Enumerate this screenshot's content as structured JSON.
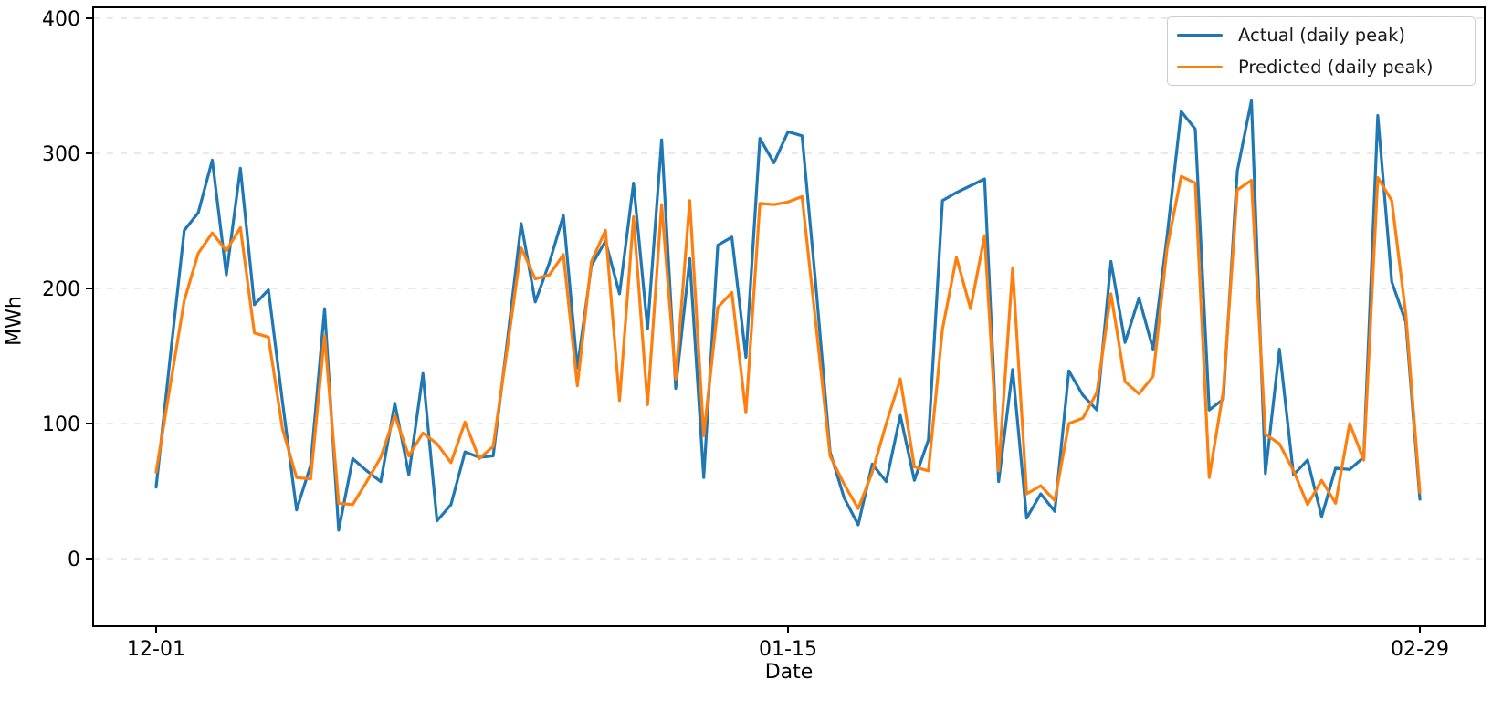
{
  "figure": {
    "background": "#ffffff",
    "spine_color": "#000000",
    "grid_color": "#dcdcdc",
    "text_color": "#1a1a1a"
  },
  "chart_data": {
    "type": "line",
    "title": "",
    "xlabel": "Date",
    "ylabel": "MWh",
    "grid": "horizontal dashed",
    "legend_position": "upper right",
    "y_ticks": [
      0,
      100,
      200,
      300,
      400
    ],
    "ylim": [
      -50,
      408
    ],
    "x_ticks": [
      {
        "day": 0,
        "label": "12-01"
      },
      {
        "day": 45,
        "label": "01-15"
      },
      {
        "day": 90,
        "label": "02-29"
      }
    ],
    "x_unit": "day index from 12-01 (daily data, 91 days: 12-01 to 02-29)",
    "series": [
      {
        "name": "Actual (daily peak)",
        "color": "#1f77b4",
        "values": [
          53,
          149,
          243,
          256,
          295,
          210,
          289,
          188,
          199,
          116,
          36,
          69,
          185,
          21,
          74,
          65,
          57,
          115,
          62,
          137,
          28,
          40,
          79,
          75,
          76,
          160,
          248,
          190,
          219,
          254,
          141,
          217,
          235,
          196,
          278,
          170,
          310,
          126,
          222,
          60,
          232,
          238,
          149,
          311,
          293,
          316,
          313,
          200,
          79,
          45,
          25,
          70,
          57,
          106,
          58,
          88,
          265,
          271,
          276,
          281,
          57,
          140,
          30,
          48,
          35,
          139,
          121,
          110,
          220,
          160,
          193,
          155,
          239,
          331,
          318,
          110,
          118,
          287,
          339,
          63,
          155,
          62,
          73,
          31,
          67,
          66,
          75,
          328,
          205,
          175,
          44
        ]
      },
      {
        "name": "Predicted (daily peak)",
        "color": "#ff7f0e",
        "values": [
          64,
          128,
          191,
          226,
          241,
          228,
          245,
          167,
          164,
          96,
          60,
          59,
          165,
          41,
          40,
          57,
          75,
          106,
          76,
          93,
          85,
          71,
          101,
          74,
          83,
          155,
          230,
          207,
          210,
          225,
          128,
          220,
          243,
          117,
          253,
          114,
          262,
          133,
          265,
          91,
          186,
          197,
          108,
          263,
          262,
          264,
          268,
          172,
          76,
          55,
          37,
          64,
          100,
          133,
          68,
          65,
          170,
          223,
          185,
          239,
          65,
          215,
          48,
          54,
          43,
          100,
          104,
          123,
          196,
          131,
          122,
          135,
          230,
          283,
          278,
          60,
          124,
          273,
          280,
          92,
          85,
          65,
          40,
          58,
          41,
          100,
          73,
          282,
          265,
          181,
          49
        ]
      }
    ]
  }
}
